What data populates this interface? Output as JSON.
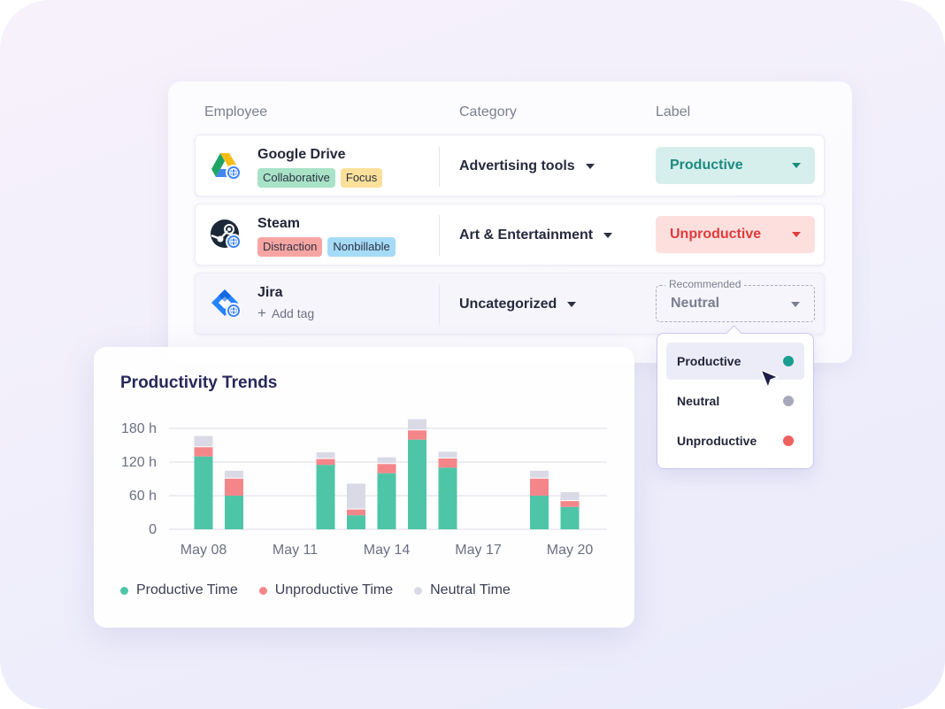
{
  "table": {
    "headers": {
      "employee": "Employee",
      "category": "Category",
      "label": "Label"
    },
    "rows": [
      {
        "app": "Google Drive",
        "icon": "google-drive-icon",
        "tags": [
          {
            "text": "Collaborative",
            "color": "#a8e3c8"
          },
          {
            "text": "Focus",
            "color": "#fbe09a"
          }
        ],
        "category": "Advertising tools",
        "label": "Productive",
        "label_color": "#1c8a7e"
      },
      {
        "app": "Steam",
        "icon": "steam-icon",
        "tags": [
          {
            "text": "Distraction",
            "color": "#f7a5a3"
          },
          {
            "text": "Nonbillable",
            "color": "#a6dbf7"
          }
        ],
        "category": "Art & Entertainment",
        "label": "Unproductive",
        "label_color": "#e03b3b"
      },
      {
        "app": "Jira",
        "icon": "jira-icon",
        "add_tag": "Add tag",
        "category": "Uncategorized",
        "label": "Neutral",
        "recommended": "Recommended"
      }
    ]
  },
  "dropdown": {
    "options": [
      {
        "label": "Productive",
        "color": "#1a9e92",
        "active": true
      },
      {
        "label": "Neutral",
        "color": "#a7a9bd"
      },
      {
        "label": "Unproductive",
        "color": "#f0605f"
      }
    ]
  },
  "chart": {
    "title": "Productivity Trends"
  },
  "chart_data": {
    "type": "bar",
    "stacked": true,
    "y_ticks": [
      "180 h",
      "120 h",
      "60 h",
      "0"
    ],
    "ylim": [
      0,
      200
    ],
    "x_tick_labels": [
      "May 08",
      "May 11",
      "May 14",
      "May 17",
      "May 20"
    ],
    "categories": [
      "May 08",
      "May 09",
      "May 10",
      "May 11",
      "May 12",
      "May 13",
      "May 14",
      "May 15",
      "May 16",
      "May 17",
      "May 18",
      "May 19",
      "May 20"
    ],
    "series": [
      {
        "name": "Productive Time",
        "color": "#4fc5a8",
        "values": [
          130,
          60,
          0,
          0,
          115,
          25,
          100,
          160,
          110,
          0,
          0,
          60,
          40
        ]
      },
      {
        "name": "Unproductive Time",
        "color": "#f4868a",
        "values": [
          18,
          32,
          0,
          0,
          12,
          12,
          18,
          18,
          18,
          0,
          0,
          32,
          12
        ]
      },
      {
        "name": "Neutral Time",
        "color": "#d9dae6",
        "values": [
          20,
          14,
          0,
          0,
          12,
          46,
          12,
          20,
          12,
          0,
          0,
          14,
          16
        ]
      }
    ],
    "legend": "bottom",
    "grid": true
  }
}
